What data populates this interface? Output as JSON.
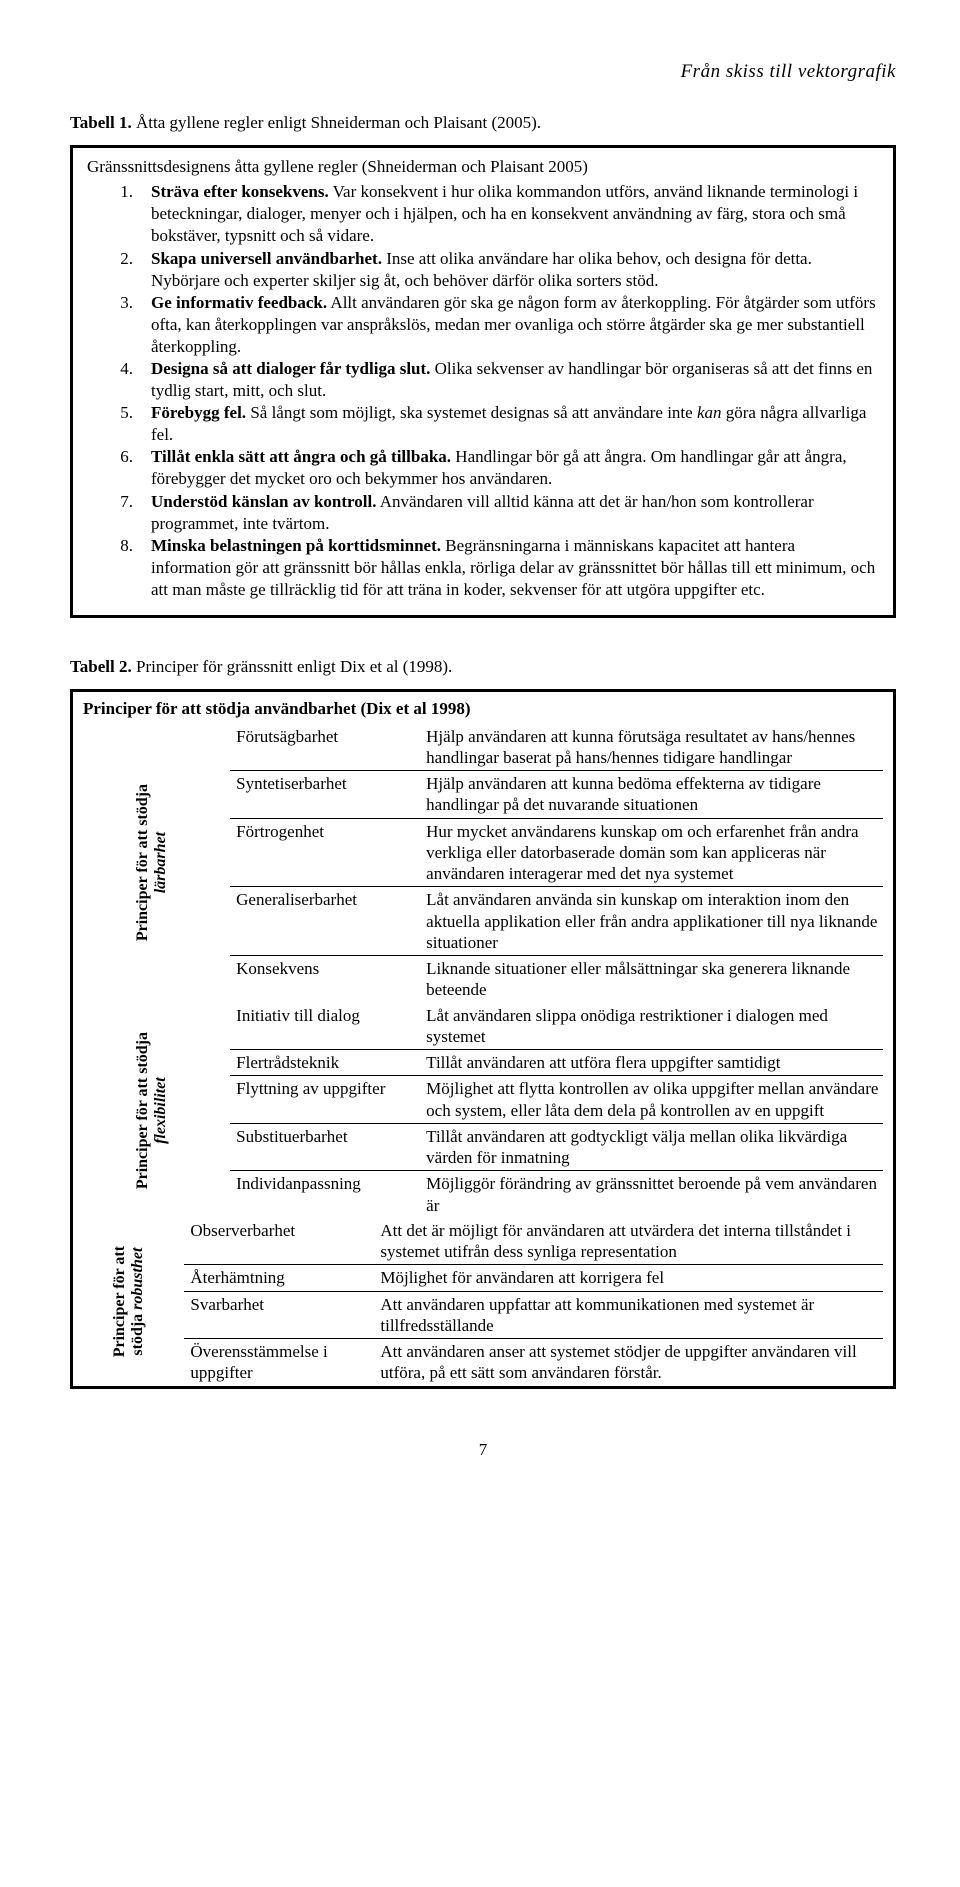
{
  "header": "Från skiss till vektorgrafik",
  "table1": {
    "caption_lead": "Tabell 1.",
    "caption_rest": " Åtta gyllene regler enligt Shneiderman och Plaisant (2005).",
    "subtitle": "Gränssnittsdesignens åtta gyllene regler (Shneiderman och Plaisant 2005)",
    "items": [
      {
        "n": "1.",
        "title": "Sträva efter konsekvens.",
        "text": " Var konsekvent i hur olika kommandon utförs, använd liknande terminologi i beteckningar, dialoger, menyer och i hjälpen, och ha en konsekvent användning av färg, stora och små bokstäver, typsnitt och så vidare."
      },
      {
        "n": "2.",
        "title": "Skapa universell användbarhet.",
        "text": " Inse att olika användare har olika behov, och designa för detta. Nybörjare och experter skiljer sig åt, och behöver därför olika sorters stöd."
      },
      {
        "n": "3.",
        "title": "Ge informativ feedback.",
        "text": " Allt användaren gör ska ge någon form av återkoppling. För åtgärder som utförs ofta, kan återkopplingen var anspråkslös, medan mer ovanliga och större åtgärder ska ge mer substantiell återkoppling."
      },
      {
        "n": "4.",
        "title": "Designa så att dialoger får tydliga slut.",
        "text": " Olika sekvenser av handlingar bör organiseras så att det finns en tydlig start, mitt, och slut."
      },
      {
        "n": "5.",
        "title": "Förebygg fel.",
        "text_html": " Så långt som möjligt, ska systemet designas så att användare inte <em>kan</em> göra några allvarliga fel."
      },
      {
        "n": "6.",
        "title": "Tillåt enkla sätt att ångra och gå tillbaka.",
        "text": " Handlingar bör gå att ångra. Om handlingar går att ångra, förebygger det mycket oro och bekymmer hos användaren."
      },
      {
        "n": "7.",
        "title": "Understöd känslan av kontroll.",
        "text": " Användaren vill alltid känna att det är han/hon som kontrollerar programmet, inte tvärtom."
      },
      {
        "n": "8.",
        "title": "Minska belastningen på korttidsminnet.",
        "text": " Begränsningarna i människans kapacitet att hantera information gör att gränssnitt bör hållas enkla, rörliga delar av gränssnittet bör hållas till ett minimum, och att man måste ge tillräcklig tid för att träna in koder, sekvenser för att utgöra uppgifter etc."
      }
    ]
  },
  "table2": {
    "caption_lead": "Tabell 2.",
    "caption_rest": " Principer för gränssnitt enligt Dix et al (1998).",
    "title": "Principer för att stödja användbarhet (Dix et al 1998)",
    "sections": [
      {
        "side_b": "Principer för att stödja",
        "side_i": "lärbarhet",
        "rows": [
          {
            "t": "Förutsägbarhet",
            "d": "Hjälp användaren att kunna förutsäga resultatet av hans/hennes handlingar baserat på hans/hennes tidigare handlingar"
          },
          {
            "t": "Syntetiserbarhet",
            "d": "Hjälp användaren att kunna bedöma effekterna av tidigare handlingar på det nuvarande situationen"
          },
          {
            "t": "Förtrogenhet",
            "d": "Hur mycket användarens kunskap om och erfarenhet från andra verkliga eller datorbaserade domän som kan appliceras när användaren interagerar med det nya systemet"
          },
          {
            "t": "Generaliserbarhet",
            "d": "Låt användaren använda sin kunskap om interaktion inom den aktuella applikation eller från andra applikationer till nya liknande situationer"
          },
          {
            "t": "Konsekvens",
            "d": "Liknande situationer eller målsättningar ska generera liknande beteende"
          }
        ]
      },
      {
        "side_b": "Principer för att stödja",
        "side_i": "flexibilitet",
        "rows": [
          {
            "t": "Initiativ till dialog",
            "d": "Låt användaren slippa onödiga restriktioner i dialogen med systemet"
          },
          {
            "t": "Flertrådsteknik",
            "d": "Tillåt användaren att utföra flera uppgifter samtidigt"
          },
          {
            "t": "Flyttning av uppgifter",
            "d": "Möjlighet att flytta kontrollen av olika uppgifter mellan användare och system, eller låta dem dela på kontrollen av en uppgift"
          },
          {
            "t": "Substituerbarhet",
            "d": "Tillåt användaren att godtyckligt välja mellan olika likvärdiga värden för inmatning"
          },
          {
            "t": "Individanpassning",
            "d": "Möjliggör förändring av gränssnittet beroende på vem användaren är"
          }
        ]
      },
      {
        "side_b": "Principer för att",
        "side_i": "stödja <em style='font-style:italic'>robusthet</em>",
        "side_combined_b": "Principer för att",
        "side_combined_i": "stödja robusthet",
        "rows": [
          {
            "t": "Observerbarhet",
            "d": "Att det är möjligt för användaren att utvärdera det interna tillståndet i systemet utifrån dess synliga representation"
          },
          {
            "t": "Återhämtning",
            "d": "Möjlighet för användaren att korrigera fel"
          },
          {
            "t": "Svarbarhet",
            "d": "Att användaren uppfattar att kommunikationen med systemet är tillfredsställande"
          },
          {
            "t": "Överensstämmelse i uppgifter",
            "d": "Att användaren anser att systemet stödjer de uppgifter användaren vill utföra, på ett sätt som användaren förstår."
          }
        ]
      }
    ]
  },
  "pagenum": "7"
}
